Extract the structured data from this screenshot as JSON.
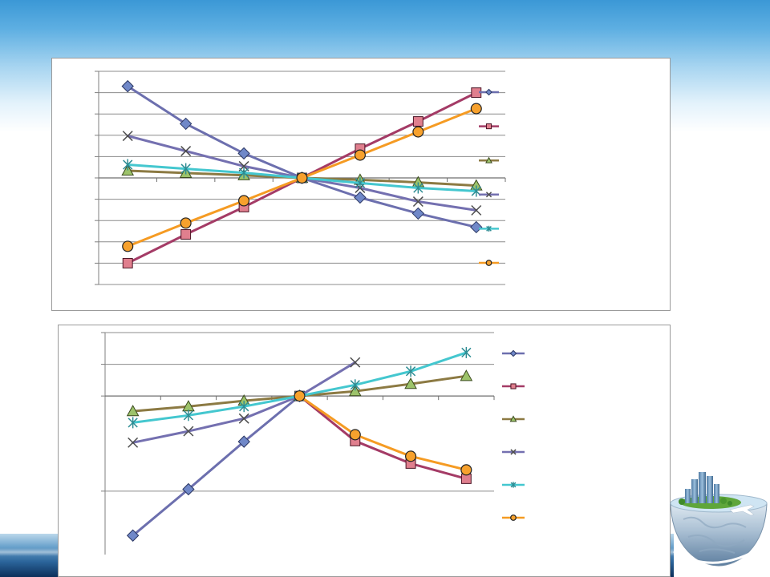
{
  "chart_data": [
    {
      "type": "line",
      "ylim": [
        -5,
        5
      ],
      "x_axis_at": 0,
      "y_gridlines": [
        5,
        4,
        3,
        2,
        1,
        -1,
        -2,
        -3,
        -4,
        -5
      ],
      "grid": true,
      "legend": "right",
      "series": [
        {
          "marker": "diamond",
          "color": "#6c6fae",
          "marker_fill": "#7088c8",
          "marker_stroke": "#2b3763",
          "values": [
            4.3,
            2.54,
            1.15,
            0,
            -0.92,
            -1.67,
            -2.31
          ]
        },
        {
          "marker": "square",
          "color": "#a43b66",
          "marker_fill": "#e07f8e",
          "marker_stroke": "#4a1424",
          "values": [
            -4.0,
            -2.65,
            -1.37,
            0,
            1.37,
            2.65,
            4.0
          ]
        },
        {
          "marker": "triangle",
          "color": "#8c7a43",
          "marker_fill": "#9dc36a",
          "marker_stroke": "#3b4a1f",
          "values": [
            0.34,
            0.23,
            0.12,
            0,
            -0.09,
            -0.21,
            -0.36
          ]
        },
        {
          "marker": "x",
          "color": "#7470b0",
          "marker_fill": "none",
          "marker_stroke": "#4d4d4d",
          "values": [
            1.97,
            1.26,
            0.55,
            0,
            -0.47,
            -1.11,
            -1.52
          ]
        },
        {
          "marker": "star",
          "color": "#44c7cf",
          "marker_fill": "none",
          "marker_stroke": "#2e8d94",
          "values": [
            0.62,
            0.43,
            0.24,
            0,
            -0.24,
            -0.47,
            -0.62
          ]
        },
        {
          "marker": "circle",
          "color": "#f59b23",
          "marker_fill": "#f7a12d",
          "marker_stroke": "#222222",
          "values": [
            -3.21,
            -2.12,
            -1.07,
            0,
            1.07,
            2.16,
            3.25
          ]
        }
      ]
    },
    {
      "type": "line",
      "ylim": [
        -5,
        2
      ],
      "x_axis_at": 0,
      "y_gridlines": [
        2,
        1,
        -3
      ],
      "grid": true,
      "legend": "right",
      "series": [
        {
          "marker": "diamond",
          "color": "#6c6fae",
          "marker_fill": "#7088c8",
          "marker_stroke": "#2b3763",
          "values": [
            -4.4,
            -2.94,
            -1.44,
            0,
            null,
            null,
            null
          ]
        },
        {
          "marker": "square",
          "color": "#a43b66",
          "marker_fill": "#e07f8e",
          "marker_stroke": "#4a1424",
          "values": [
            null,
            null,
            null,
            0,
            -1.42,
            -2.13,
            -2.61
          ]
        },
        {
          "marker": "triangle",
          "color": "#8c7a43",
          "marker_fill": "#9dc36a",
          "marker_stroke": "#3b4a1f",
          "values": [
            -0.48,
            -0.33,
            -0.15,
            0,
            0.15,
            0.38,
            0.63
          ]
        },
        {
          "marker": "x",
          "color": "#7470b0",
          "marker_fill": "none",
          "marker_stroke": "#4d4d4d",
          "values": [
            -1.47,
            -1.11,
            -0.71,
            0,
            1.06,
            null,
            null
          ]
        },
        {
          "marker": "star",
          "color": "#44c7cf",
          "marker_fill": "none",
          "marker_stroke": "#2e8d94",
          "values": [
            -0.84,
            -0.61,
            -0.33,
            0,
            0.35,
            0.78,
            1.37
          ]
        },
        {
          "marker": "circle",
          "color": "#f59b23",
          "marker_fill": "#f7a12d",
          "marker_stroke": "#222222",
          "values": [
            null,
            null,
            null,
            0,
            -1.22,
            -1.9,
            -2.33
          ]
        }
      ]
    }
  ]
}
